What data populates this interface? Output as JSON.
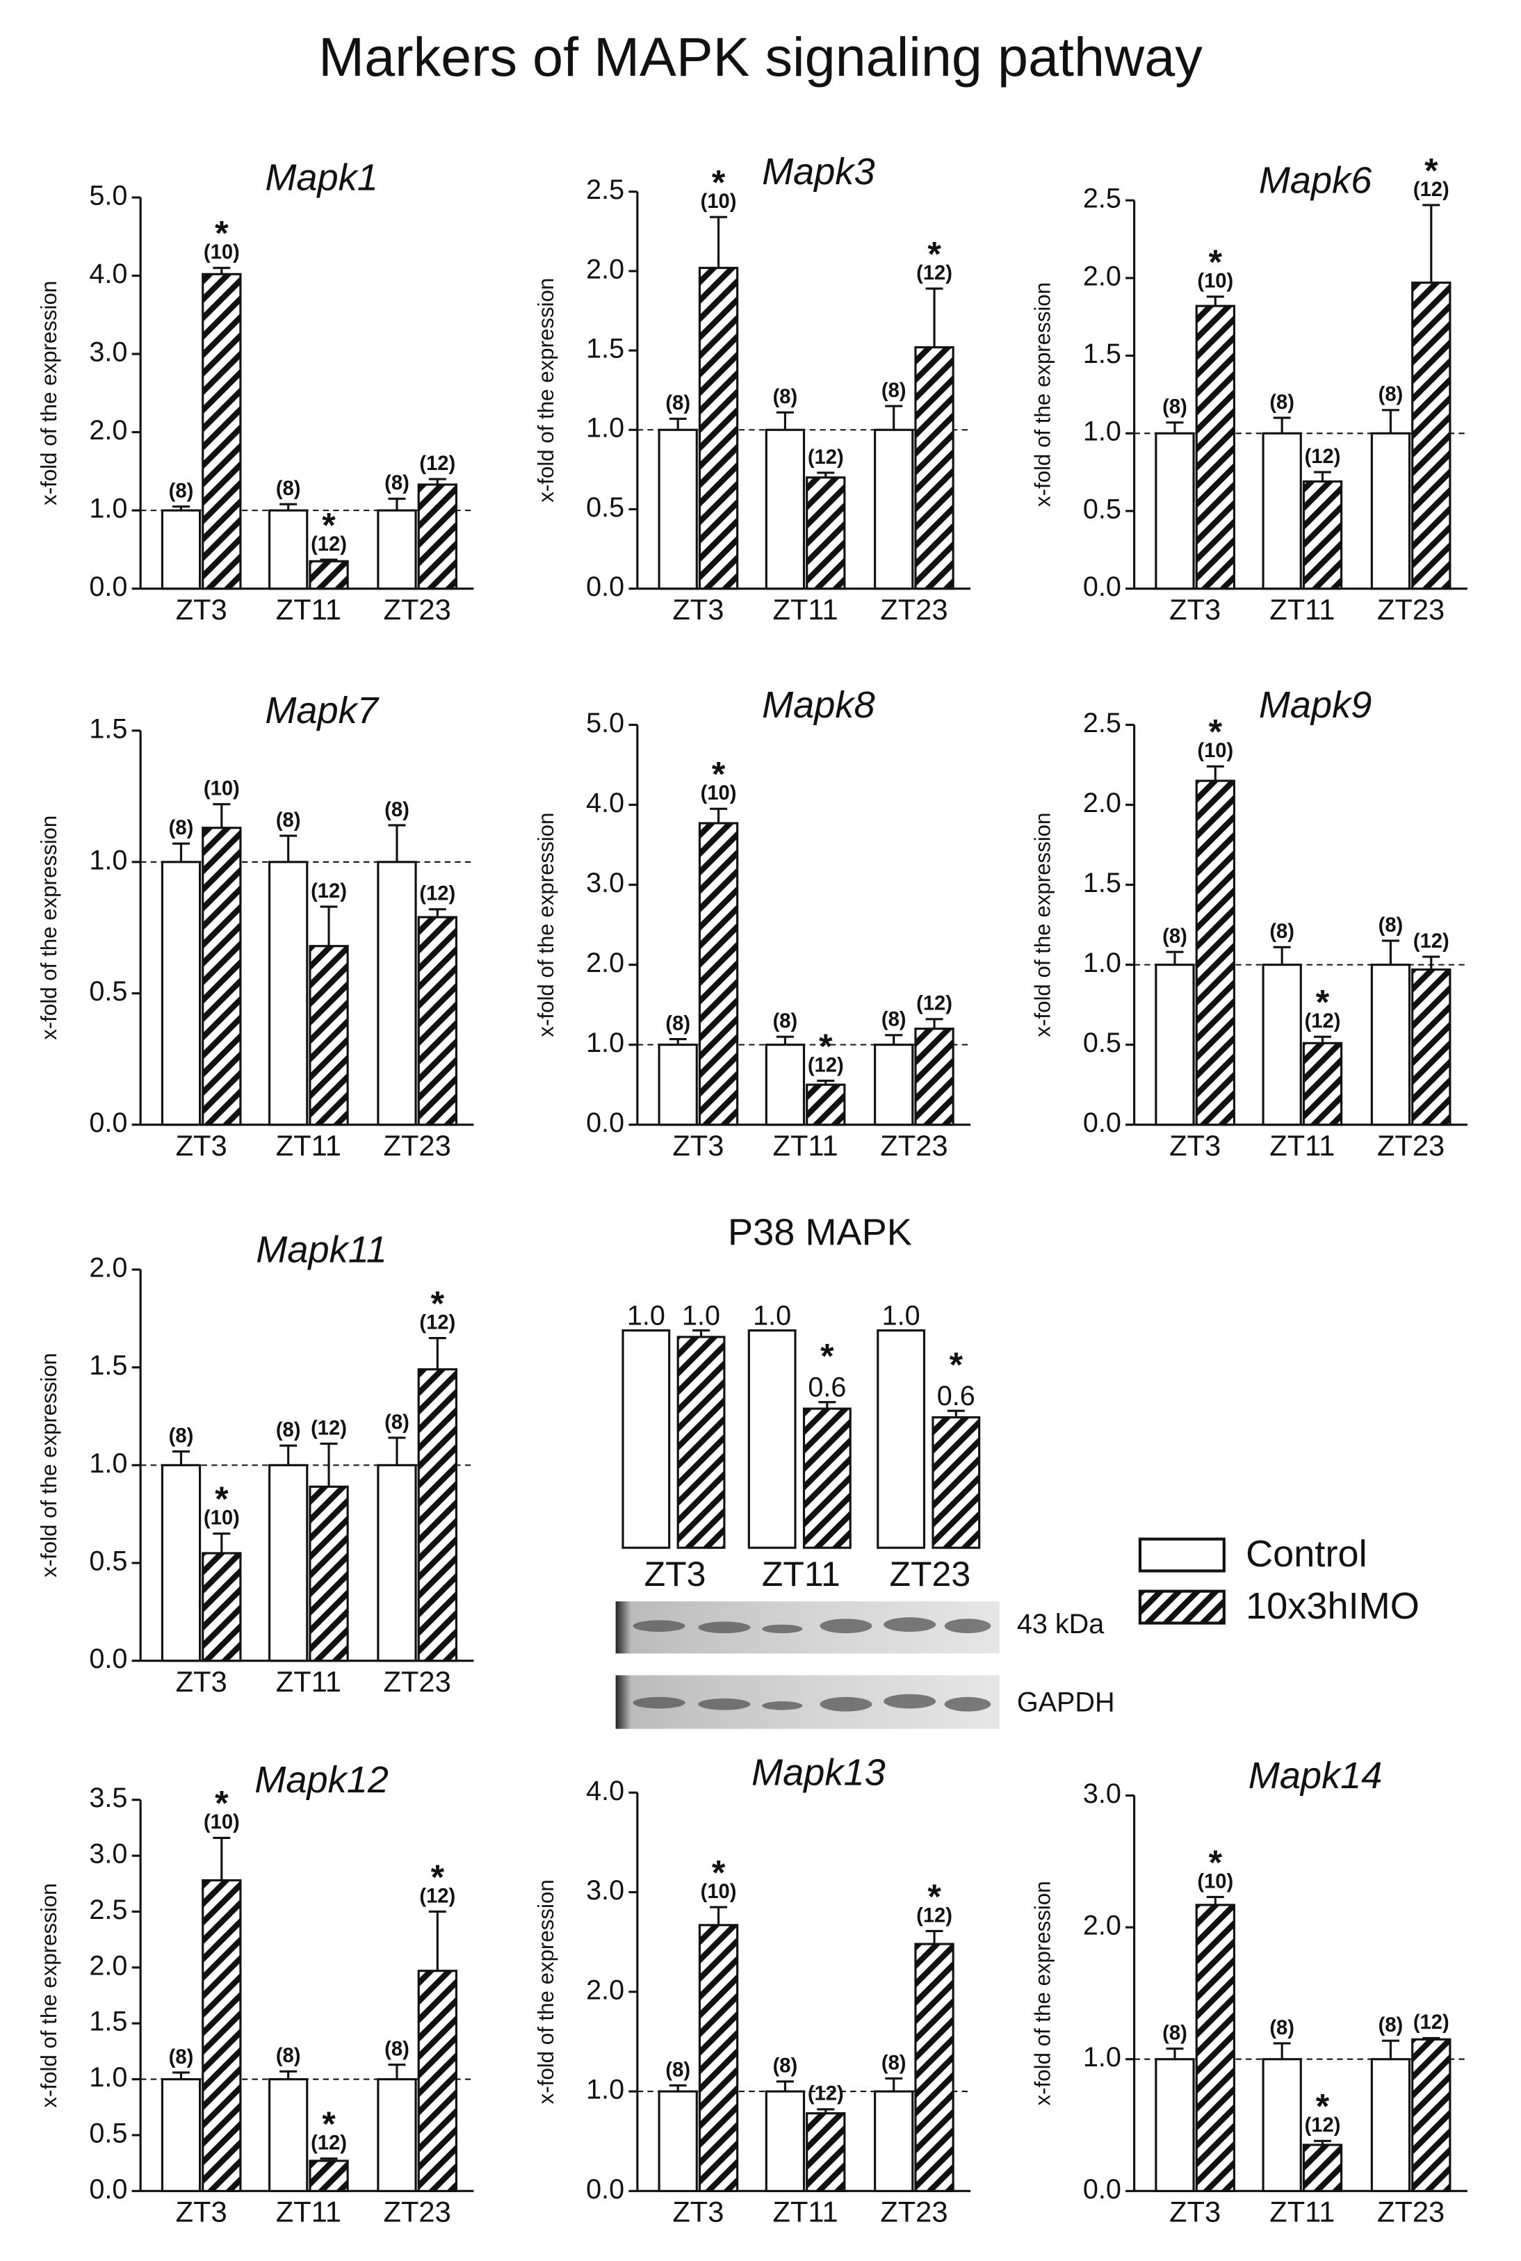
{
  "title": "Markers of MAPK signaling pathway",
  "legend": [
    "Control",
    "10x3hIMO"
  ],
  "chart_data": [
    {
      "type": "bar",
      "title": "Mapk1",
      "ylabel": "x-fold of the expression",
      "categories": [
        "ZT3",
        "ZT11",
        "ZT23"
      ],
      "ylim": [
        0,
        5
      ],
      "yticks": [
        {
          "value": 0,
          "label": "0.0"
        },
        {
          "value": 1,
          "label": "1.0"
        },
        {
          "value": 2,
          "label": "2.0"
        },
        {
          "value": 3,
          "label": "3.0"
        },
        {
          "value": 4,
          "label": "4.0"
        },
        {
          "value": 5,
          "label": "5.0"
        }
      ],
      "reference_line": 1,
      "series": [
        {
          "values": [
            1,
            1,
            1
          ],
          "errors": [
            0.05,
            0.08,
            0.15
          ],
          "n_labels": [
            "(8)",
            "(8)",
            "(8)"
          ]
        },
        {
          "values": [
            4.02,
            0.35,
            1.33
          ],
          "errors": [
            0.08,
            0.02,
            0.07
          ],
          "n_labels": [
            "(10)",
            "(12)",
            "(12)"
          ],
          "stars": [
            "*",
            "*",
            null
          ]
        }
      ]
    },
    {
      "type": "bar",
      "title": "Mapk3",
      "ylabel": "x-fold of the expression",
      "categories": [
        "ZT3",
        "ZT11",
        "ZT23"
      ],
      "ylim": [
        0,
        2.5
      ],
      "yticks": [
        {
          "value": 0,
          "label": "0.0"
        },
        0.5,
        {
          "value": 1,
          "label": "1.0"
        },
        1.5,
        {
          "value": 2,
          "label": "2.0"
        },
        2.5
      ],
      "reference_line": 1,
      "series": [
        {
          "values": [
            1,
            1,
            1
          ],
          "errors": [
            0.07,
            0.11,
            0.15
          ],
          "n_labels": [
            "(8)",
            "(8)",
            "(8)"
          ]
        },
        {
          "values": [
            2.02,
            0.7,
            1.52
          ],
          "errors": [
            0.32,
            0.03,
            0.37
          ],
          "n_labels": [
            "(10)",
            "(12)",
            "(12)"
          ],
          "stars": [
            "*",
            null,
            "*"
          ]
        }
      ]
    },
    {
      "type": "bar",
      "title": "Mapk6",
      "ylabel": "x-fold of the expression",
      "categories": [
        "ZT3",
        "ZT11",
        "ZT23"
      ],
      "ylim": [
        0,
        2.5
      ],
      "yticks": [
        {
          "value": 0,
          "label": "0.0"
        },
        0.5,
        {
          "value": 1,
          "label": "1.0"
        },
        1.5,
        {
          "value": 2,
          "label": "2.0"
        },
        2.5
      ],
      "reference_line": 1,
      "series": [
        {
          "values": [
            1,
            1,
            1
          ],
          "errors": [
            0.07,
            0.1,
            0.15
          ],
          "n_labels": [
            "(8)",
            "(8)",
            "(8)"
          ]
        },
        {
          "values": [
            1.82,
            0.69,
            1.97
          ],
          "errors": [
            0.06,
            0.06,
            0.5
          ],
          "n_labels": [
            "(10)",
            "(12)",
            "(12)"
          ],
          "stars": [
            "*",
            null,
            "*"
          ]
        }
      ]
    },
    {
      "type": "bar",
      "title": "Mapk7",
      "ylabel": "x-fold of the expression",
      "categories": [
        "ZT3",
        "ZT11",
        "ZT23"
      ],
      "ylim": [
        0,
        1.5
      ],
      "yticks": [
        {
          "value": 0,
          "label": "0.0"
        },
        0.5,
        {
          "value": 1,
          "label": "1.0"
        },
        1.5
      ],
      "reference_line": 1,
      "series": [
        {
          "values": [
            1,
            1,
            1
          ],
          "errors": [
            0.07,
            0.1,
            0.14
          ],
          "n_labels": [
            "(8)",
            "(8)",
            "(8)"
          ]
        },
        {
          "values": [
            1.13,
            0.68,
            0.79
          ],
          "errors": [
            0.09,
            0.15,
            0.03
          ],
          "n_labels": [
            "(10)",
            "(12)",
            "(12)"
          ]
        }
      ]
    },
    {
      "type": "bar",
      "title": "Mapk8",
      "ylabel": "x-fold of the expression",
      "categories": [
        "ZT3",
        "ZT11",
        "ZT23"
      ],
      "ylim": [
        0,
        5
      ],
      "yticks": [
        {
          "value": 0,
          "label": "0.0"
        },
        {
          "value": 1,
          "label": "1.0"
        },
        {
          "value": 2,
          "label": "2.0"
        },
        {
          "value": 3,
          "label": "3.0"
        },
        {
          "value": 4,
          "label": "4.0"
        },
        {
          "value": 5,
          "label": "5.0"
        }
      ],
      "reference_line": 1,
      "series": [
        {
          "values": [
            1,
            1,
            1
          ],
          "errors": [
            0.07,
            0.1,
            0.12
          ],
          "n_labels": [
            "(8)",
            "(8)",
            "(8)"
          ]
        },
        {
          "values": [
            3.77,
            0.5,
            1.2
          ],
          "errors": [
            0.18,
            0.05,
            0.12
          ],
          "n_labels": [
            "(10)",
            "(12)",
            "(12)"
          ],
          "stars": [
            "*",
            "*",
            null
          ]
        }
      ]
    },
    {
      "type": "bar",
      "title": "Mapk9",
      "ylabel": "x-fold of the expression",
      "categories": [
        "ZT3",
        "ZT11",
        "ZT23"
      ],
      "ylim": [
        0,
        2.5
      ],
      "yticks": [
        {
          "value": 0,
          "label": "0.0"
        },
        0.5,
        {
          "value": 1,
          "label": "1.0"
        },
        1.5,
        {
          "value": 2,
          "label": "2.0"
        },
        2.5
      ],
      "reference_line": 1,
      "series": [
        {
          "values": [
            1,
            1,
            1
          ],
          "errors": [
            0.08,
            0.11,
            0.15
          ],
          "n_labels": [
            "(8)",
            "(8)",
            "(8)"
          ]
        },
        {
          "values": [
            2.15,
            0.51,
            0.97
          ],
          "errors": [
            0.09,
            0.04,
            0.08
          ],
          "n_labels": [
            "(10)",
            "(12)",
            "(12)"
          ],
          "stars": [
            "*",
            "*",
            null
          ]
        }
      ]
    },
    {
      "type": "bar",
      "title": "Mapk11",
      "ylabel": "x-fold of the expression",
      "categories": [
        "ZT3",
        "ZT11",
        "ZT23"
      ],
      "ylim": [
        0,
        2
      ],
      "yticks": [
        {
          "value": 0,
          "label": "0.0"
        },
        0.5,
        {
          "value": 1,
          "label": "1.0"
        },
        1.5,
        {
          "value": 2,
          "label": "2.0"
        }
      ],
      "reference_line": 1,
      "series": [
        {
          "values": [
            1,
            1,
            1
          ],
          "errors": [
            0.07,
            0.1,
            0.14
          ],
          "n_labels": [
            "(8)",
            "(8)",
            "(8)"
          ]
        },
        {
          "values": [
            0.55,
            0.89,
            1.49
          ],
          "errors": [
            0.1,
            0.22,
            0.16
          ],
          "n_labels": [
            "(10)",
            "(12)",
            "(12)"
          ],
          "stars": [
            "*",
            null,
            "*"
          ]
        }
      ]
    },
    {
      "type": "blot_bar",
      "title": "P38 MAPK",
      "categories": [
        "ZT3",
        "ZT11",
        "ZT23"
      ],
      "blot_labels": [
        "43 kDa",
        "GAPDH"
      ],
      "series": [
        {
          "values": [
            1,
            1,
            1
          ],
          "value_labels": [
            "1.0",
            "1.0",
            "1.0"
          ]
        },
        {
          "values": [
            0.97,
            0.64,
            0.6
          ],
          "errors": [
            0.03,
            0.03,
            0.03
          ],
          "value_labels": [
            "1.0",
            "0.6",
            "0.6"
          ],
          "stars": [
            null,
            "*",
            "*"
          ]
        }
      ]
    },
    {
      "type": "bar",
      "title": "Mapk12",
      "ylabel": "x-fold of the expression",
      "categories": [
        "ZT3",
        "ZT11",
        "ZT23"
      ],
      "ylim": [
        0,
        3.5
      ],
      "yticks": [
        {
          "value": 0,
          "label": "0.0"
        },
        0.5,
        {
          "value": 1,
          "label": "1.0"
        },
        1.5,
        {
          "value": 2,
          "label": "2.0"
        },
        2.5,
        {
          "value": 3,
          "label": "3.0"
        },
        3.5
      ],
      "reference_line": 1,
      "series": [
        {
          "values": [
            1,
            1,
            1
          ],
          "errors": [
            0.06,
            0.07,
            0.13
          ],
          "n_labels": [
            "(8)",
            "(8)",
            "(8)"
          ]
        },
        {
          "values": [
            2.78,
            0.27,
            1.97
          ],
          "errors": [
            0.38,
            0.02,
            0.53
          ],
          "n_labels": [
            "(10)",
            "(12)",
            "(12)"
          ],
          "stars": [
            "*",
            "*",
            "*"
          ]
        }
      ]
    },
    {
      "type": "bar",
      "title": "Mapk13",
      "ylabel": "x-fold of the expression",
      "categories": [
        "ZT3",
        "ZT11",
        "ZT23"
      ],
      "ylim": [
        0,
        4
      ],
      "yticks": [
        {
          "value": 0,
          "label": "0.0"
        },
        {
          "value": 1,
          "label": "1.0"
        },
        {
          "value": 2,
          "label": "2.0"
        },
        {
          "value": 3,
          "label": "3.0"
        },
        {
          "value": 4,
          "label": "4.0"
        }
      ],
      "reference_line": 1,
      "series": [
        {
          "values": [
            1,
            1,
            1
          ],
          "errors": [
            0.06,
            0.1,
            0.13
          ],
          "n_labels": [
            "(8)",
            "(8)",
            "(8)"
          ]
        },
        {
          "values": [
            2.67,
            0.78,
            2.48
          ],
          "errors": [
            0.18,
            0.04,
            0.13
          ],
          "n_labels": [
            "(10)",
            "(12)",
            "(12)"
          ],
          "stars": [
            "*",
            null,
            "*"
          ]
        }
      ]
    },
    {
      "type": "bar",
      "title": "Mapk14",
      "ylabel": "x-fold of the expression",
      "categories": [
        "ZT3",
        "ZT11",
        "ZT23"
      ],
      "ylim": [
        0,
        3
      ],
      "yticks": [
        {
          "value": 0,
          "label": "0.0"
        },
        {
          "value": 1,
          "label": "1.0"
        },
        {
          "value": 2,
          "label": "2.0"
        },
        {
          "value": 3,
          "label": "3.0"
        }
      ],
      "reference_line": 1,
      "series": [
        {
          "values": [
            1,
            1,
            1
          ],
          "errors": [
            0.08,
            0.12,
            0.14
          ],
          "n_labels": [
            "(8)",
            "(8)",
            "(8)"
          ]
        },
        {
          "values": [
            2.17,
            0.35,
            1.15
          ],
          "errors": [
            0.06,
            0.03,
            0.01
          ],
          "n_labels": [
            "(10)",
            "(12)",
            "(12)"
          ],
          "stars": [
            "*",
            "*",
            null
          ]
        }
      ]
    }
  ]
}
